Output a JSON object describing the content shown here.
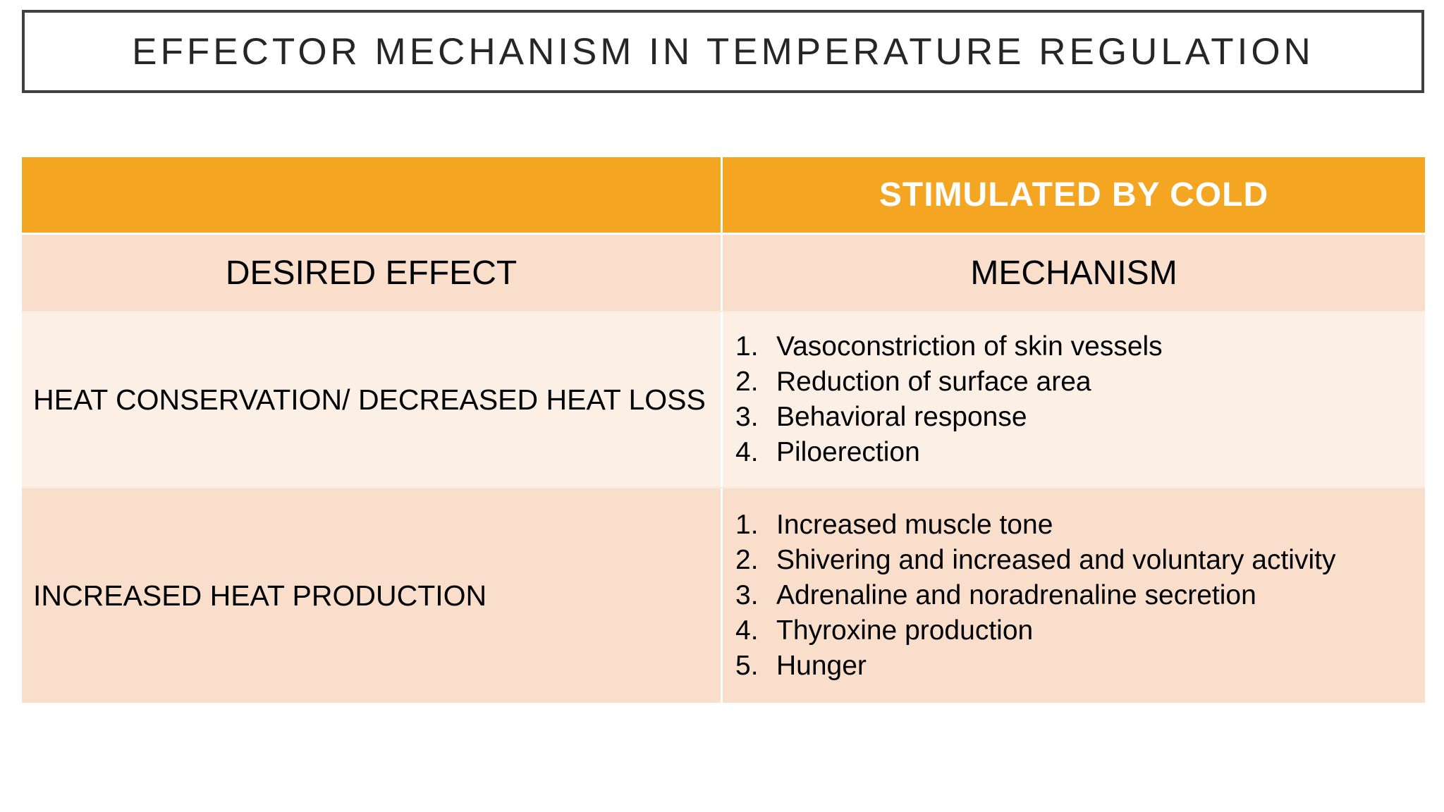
{
  "title": "EFFECTOR MECHANISM IN TEMPERATURE REGULATION",
  "colors": {
    "header_orange": "#f4a522",
    "row_peach": "#f9decc",
    "row_light": "#fcefe6",
    "border_dark": "#404040"
  },
  "table": {
    "header_right": "STIMULATED BY COLD",
    "col_desired_effect": "DESIRED EFFECT",
    "col_mechanism": "MECHANISM",
    "rows": [
      {
        "effect": "HEAT CONSERVATION/ DECREASED HEAT LOSS",
        "mechanisms": [
          {
            "num": "1.",
            "text": "Vasoconstriction of skin vessels"
          },
          {
            "num": "2.",
            "text": "Reduction of surface area"
          },
          {
            "num": "3.",
            "text": "Behavioral response"
          },
          {
            "num": "4.",
            "text": "Piloerection"
          }
        ]
      },
      {
        "effect": "INCREASED HEAT PRODUCTION",
        "mechanisms": [
          {
            "num": "1.",
            "text": "Increased muscle tone"
          },
          {
            "num": "2.",
            "text": "Shivering and increased and voluntary activity"
          },
          {
            "num": "3.",
            "text": "Adrenaline and noradrenaline secretion"
          },
          {
            "num": "4.",
            "text": "Thyroxine production"
          },
          {
            "num": "5.",
            "text": "Hunger"
          }
        ]
      }
    ]
  }
}
